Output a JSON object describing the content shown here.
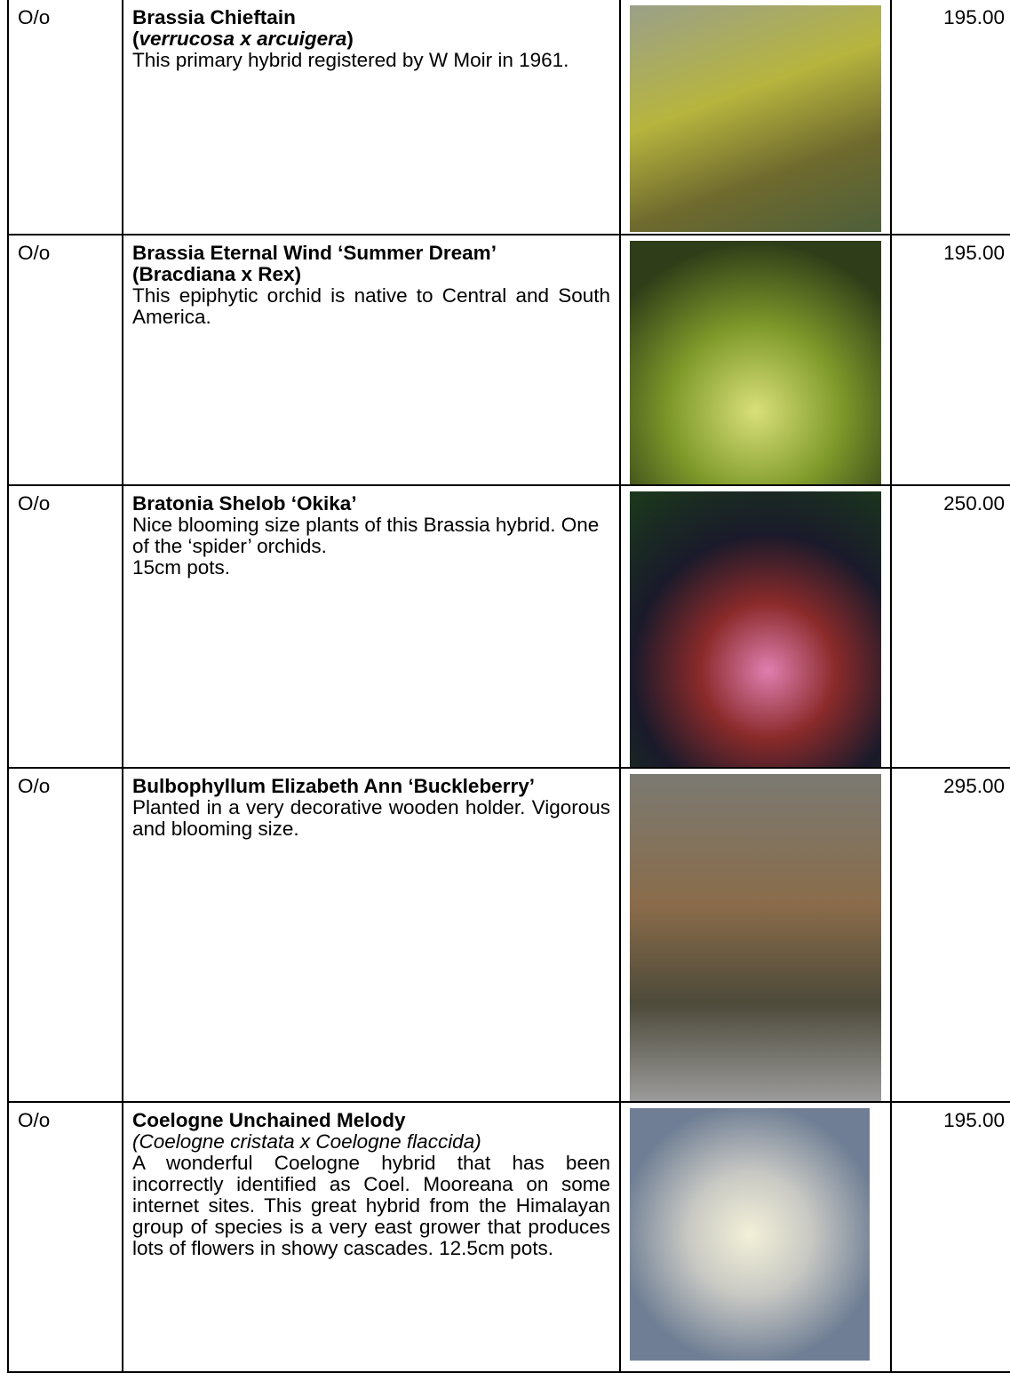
{
  "table": {
    "rows": [
      {
        "code": "O/o",
        "name": "Brassia Chieftain",
        "subtitle": [
          "(",
          "verrucosa x arcuigera",
          ")"
        ],
        "description": "This primary hybrid registered by W Moir in 1961.",
        "price": "195.00"
      },
      {
        "code": "O/o",
        "name": "Brassia Eternal Wind ‘Summer Dream’",
        "subtitle": [
          "(Bracdiana x Rex)"
        ],
        "description": "This epiphytic orchid is native to Central and South America.",
        "price": "195.00"
      },
      {
        "code": "O/o",
        "name": "Bratonia Shelob ‘Okika’",
        "description": "Nice blooming size plants of this Brassia hybrid.  One of the ‘spider’ orchids.",
        "description2": "15cm pots.",
        "price": "250.00"
      },
      {
        "code": "O/o",
        "name": "Bulbophyllum Elizabeth Ann ‘Buckleberry’",
        "description": "Planted in a very decorative wooden holder.   Vigorous and blooming size.",
        "price": "295.00"
      },
      {
        "code": "O/o",
        "name": "Coelogne Unchained Melody",
        "subtitle": [
          "(Coelogne cristata x Coelogne flaccida)"
        ],
        "description": "A wonderful Coelogne hybrid that has been incorrectly identified as Coel. Mooreana on some internet sites.  This great hybrid from the Himalayan group of species is a very east grower that produces lots of flowers in showy cascades.  12.5cm pots.",
        "price": "195.00"
      }
    ]
  }
}
